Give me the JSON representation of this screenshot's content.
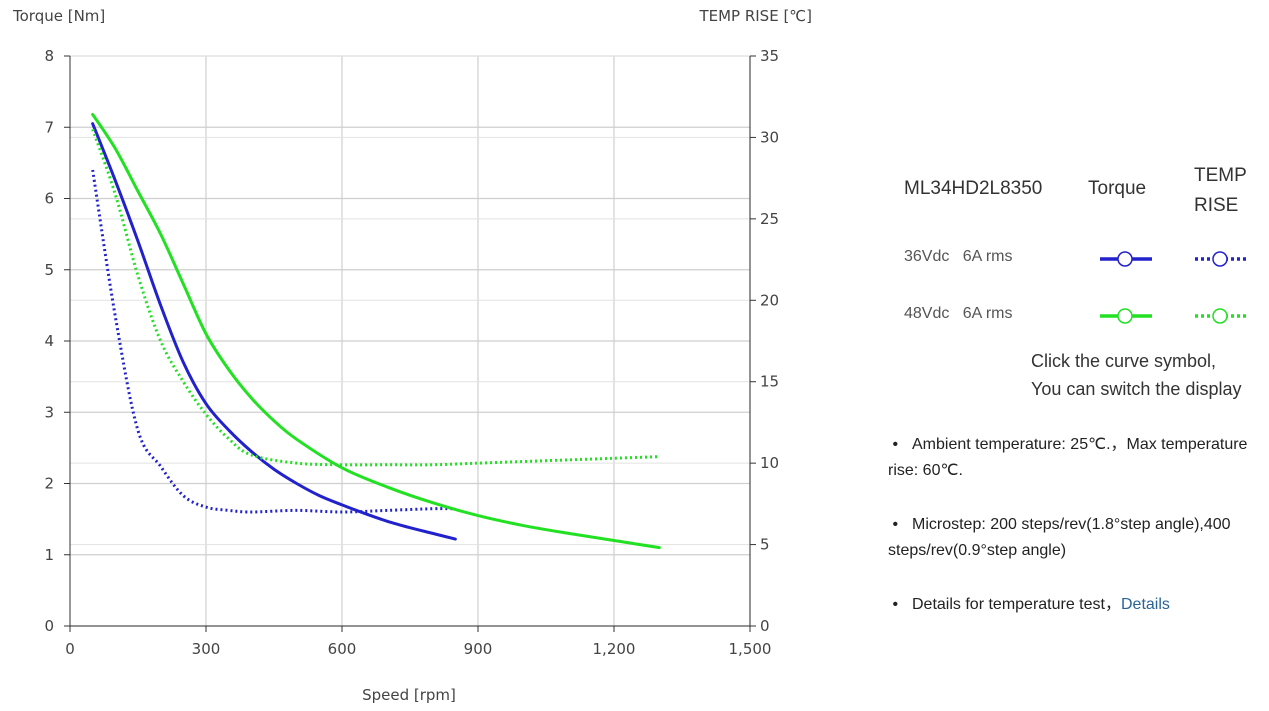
{
  "chart_data": {
    "type": "line",
    "xlabel": "Speed [rpm]",
    "ylabel_left": "Torque  [Nm]",
    "ylabel_right": "TEMP RISE [℃]",
    "xlim": [
      0,
      1500
    ],
    "ylim_left": [
      0,
      8
    ],
    "ylim_right": [
      0,
      35
    ],
    "x_ticks": [
      "0",
      "300",
      "600",
      "900",
      "1,200",
      "1,500"
    ],
    "y_ticks_left": [
      "0",
      "1",
      "2",
      "3",
      "4",
      "5",
      "6",
      "7",
      "8"
    ],
    "y_ticks_right": [
      "0",
      "5",
      "10",
      "15",
      "20",
      "25",
      "30",
      "35"
    ],
    "grid": true,
    "series": [
      {
        "name": "36Vdc 6A rms Torque",
        "axis": "left",
        "color": "#2222cc",
        "style": "solid",
        "x": [
          50,
          100,
          150,
          200,
          250,
          300,
          350,
          400,
          450,
          500,
          550,
          600,
          650,
          700,
          750,
          800,
          850
        ],
        "y": [
          7.05,
          6.25,
          5.4,
          4.5,
          3.7,
          3.12,
          2.75,
          2.45,
          2.2,
          2.0,
          1.83,
          1.7,
          1.58,
          1.47,
          1.38,
          1.3,
          1.22
        ]
      },
      {
        "name": "36Vdc 6A rms TEMP RISE",
        "axis": "right",
        "color": "#2222cc",
        "style": "dotted",
        "x": [
          50,
          100,
          150,
          200,
          250,
          300,
          350,
          400,
          500,
          600,
          700,
          800,
          850
        ],
        "y": [
          28,
          19,
          12,
          9.8,
          8.0,
          7.3,
          7.1,
          7.0,
          7.1,
          7.0,
          7.1,
          7.2,
          7.2
        ]
      },
      {
        "name": "48Vdc 6A rms Torque",
        "axis": "left",
        "color": "#22e022",
        "style": "solid",
        "x": [
          50,
          100,
          150,
          200,
          250,
          300,
          350,
          400,
          450,
          500,
          600,
          700,
          800,
          900,
          1000,
          1100,
          1200,
          1300
        ],
        "y": [
          7.18,
          6.7,
          6.1,
          5.5,
          4.8,
          4.1,
          3.6,
          3.2,
          2.88,
          2.62,
          2.22,
          1.95,
          1.73,
          1.55,
          1.41,
          1.3,
          1.2,
          1.1
        ]
      },
      {
        "name": "48Vdc 6A rms TEMP RISE",
        "axis": "right",
        "color": "#22e022",
        "style": "dotted",
        "x": [
          50,
          100,
          150,
          200,
          250,
          300,
          350,
          400,
          500,
          600,
          700,
          800,
          900,
          1000,
          1100,
          1200,
          1300
        ],
        "y": [
          30.5,
          26.5,
          21.5,
          17.5,
          15.0,
          13.0,
          11.5,
          10.5,
          10.0,
          9.9,
          9.9,
          9.9,
          10.0,
          10.1,
          10.2,
          10.3,
          10.4
        ]
      }
    ]
  },
  "legend": {
    "model": "ML34HD2L8350",
    "torque_header": "Torque",
    "temp_header": "TEMP RISE",
    "rows": [
      {
        "voltage": "36Vdc",
        "current": "6A rms",
        "color": "#2222cc"
      },
      {
        "voltage": "48Vdc",
        "current": "6A rms",
        "color": "#22e022"
      }
    ],
    "note_line1": "Click the curve symbol,",
    "note_line2": "You can switch the display"
  },
  "notes": {
    "ambient": "Ambient temperature: 25℃.，Max temperature rise: 60℃.",
    "microstep": "Microstep: 200 steps/rev(1.8°step angle),400 steps/rev(0.9°step angle)",
    "details_text": "Details for temperature test，",
    "details_link": "Details"
  }
}
